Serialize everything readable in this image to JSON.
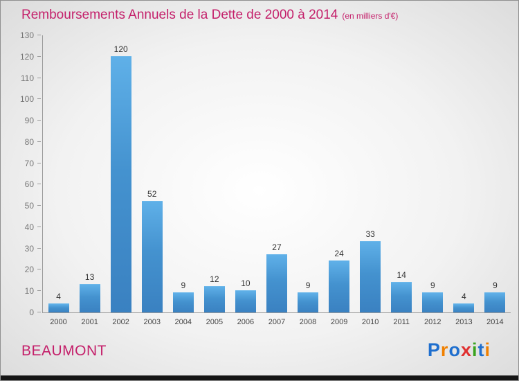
{
  "title": "Remboursements Annuels de la Dette de 2000 à 2014",
  "subtitle": "(en milliers d'€)",
  "footer": {
    "name": "BEAUMONT"
  },
  "logo": {
    "text": "Proxiti",
    "letters": [
      {
        "ch": "P",
        "color": "#1f6fce"
      },
      {
        "ch": "r",
        "color": "#f08000"
      },
      {
        "ch": "o",
        "color": "#1f6fce"
      },
      {
        "ch": "x",
        "color": "#e03030"
      },
      {
        "ch": "i",
        "color": "#3aa31f"
      },
      {
        "ch": "t",
        "color": "#1f6fce"
      },
      {
        "ch": "i",
        "color": "#f08000"
      }
    ]
  },
  "colors": {
    "title": "#c41f6a",
    "bar": "#4492cf",
    "axis": "#9a9a9a",
    "value_label": "#333333"
  },
  "chart_data": {
    "type": "bar",
    "title": "Remboursements Annuels de la Dette de 2000 à 2014",
    "subtitle": "(en milliers d'€)",
    "categories": [
      "2000",
      "2001",
      "2002",
      "2003",
      "2004",
      "2005",
      "2006",
      "2007",
      "2008",
      "2009",
      "2010",
      "2011",
      "2012",
      "2013",
      "2014"
    ],
    "values": [
      4,
      13,
      120,
      52,
      9,
      12,
      10,
      27,
      9,
      24,
      33,
      14,
      9,
      4,
      9
    ],
    "xlabel": "",
    "ylabel": "",
    "ylim": [
      0,
      130
    ],
    "yticks": [
      0,
      10,
      20,
      30,
      40,
      50,
      60,
      70,
      80,
      90,
      100,
      110,
      120,
      130
    ],
    "grid": false,
    "legend": false,
    "value_labels": true
  }
}
